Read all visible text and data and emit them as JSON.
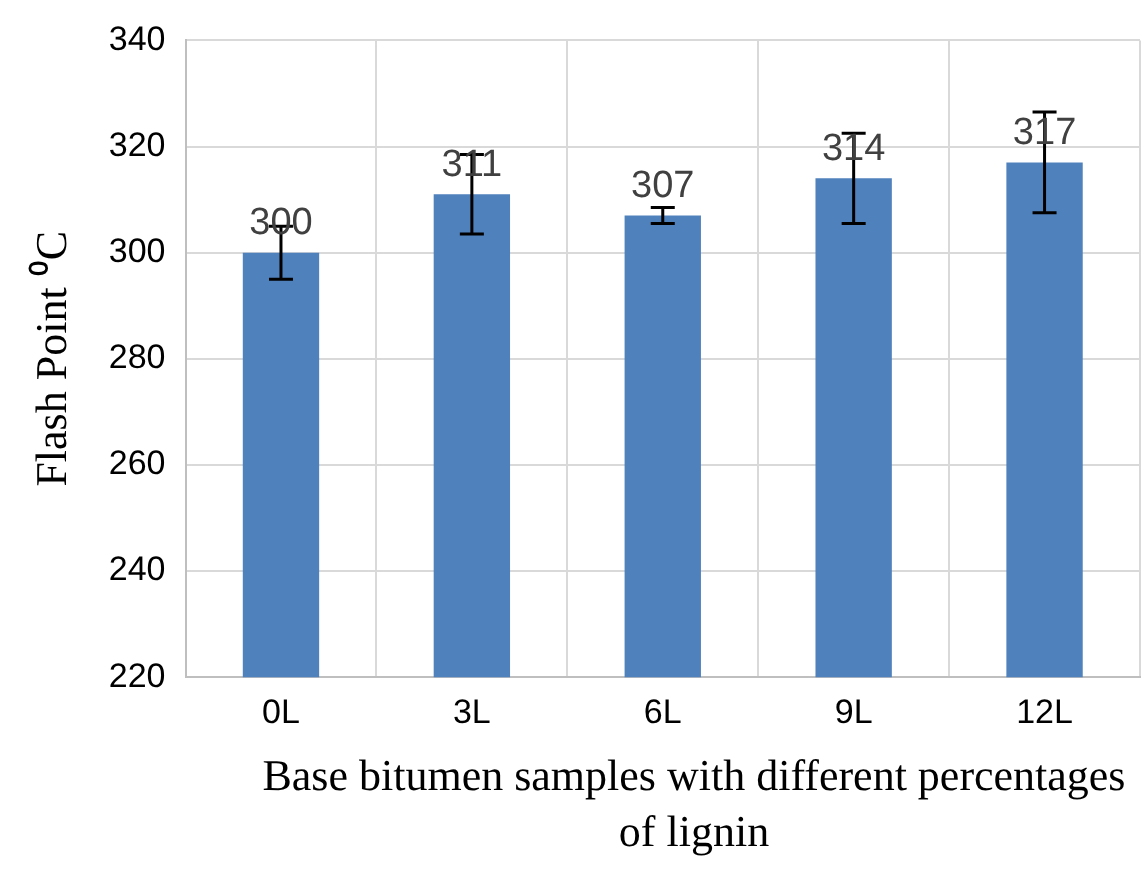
{
  "chart_data": {
    "type": "bar",
    "xlabel": "Base bitumen samples with different percentages of lignin",
    "ylabel": "Flash Point ⁰C",
    "categories": [
      "0L",
      "3L",
      "6L",
      "9L",
      "12L"
    ],
    "values": [
      300,
      311,
      307,
      314,
      317
    ],
    "errors": [
      5,
      7.5,
      1.5,
      8.5,
      9.5
    ],
    "color": "#4f81bd",
    "ylim": [
      220,
      340
    ],
    "yticks": [
      220,
      240,
      260,
      280,
      300,
      320,
      340
    ],
    "grid": true,
    "data_labels": true
  }
}
